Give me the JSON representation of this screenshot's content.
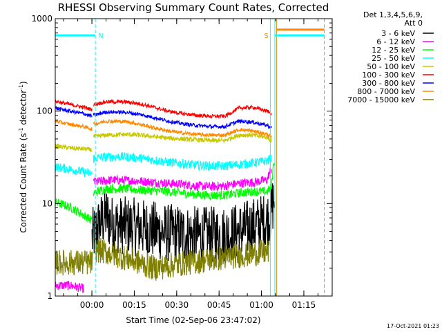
{
  "chart_data": {
    "type": "line",
    "title": "RHESSI Observing Summary Count Rates, Corrected",
    "xlabel": "Start Time (02-Sep-06 23:47:02)",
    "ylabel": "Corrected Count Rate (s⁻¹ detector⁻¹)",
    "ylabel_parts": [
      "Corrected Count Rate (s",
      "-1",
      " detector",
      "-1",
      ")"
    ],
    "yscale": "log",
    "ylim": [
      1,
      1000
    ],
    "x_unit": "minutes after 23:47:02",
    "xlim": [
      0,
      98
    ],
    "yticks": [
      {
        "v": 1,
        "label": "1"
      },
      {
        "v": 10,
        "label": "10"
      },
      {
        "v": 100,
        "label": "100"
      },
      {
        "v": 1000,
        "label": "1000"
      }
    ],
    "xticks": [
      {
        "t": 12.97,
        "label": "00:00"
      },
      {
        "t": 27.97,
        "label": "00:15"
      },
      {
        "t": 42.97,
        "label": "00:30"
      },
      {
        "t": 57.97,
        "label": "00:45"
      },
      {
        "t": 72.97,
        "label": "01:00"
      },
      {
        "t": 87.97,
        "label": "01:15"
      }
    ],
    "legend_header": [
      "Det 1,3,4,5,6,9,",
      "Att 0"
    ],
    "legend_position": "right",
    "footer": "17-Oct-2021 01:23",
    "series": [
      {
        "name": "3 - 6 keV",
        "color": "#000000",
        "segments": [
          {
            "x": [
              13,
              15,
              18,
              20,
              30,
              40,
              45,
              50,
              55,
              60,
              65,
              70,
              75,
              76.5,
              77.5
            ],
            "y": [
              4.2,
              5.5,
              7.5,
              6.0,
              5.5,
              4.8,
              4.7,
              4.5,
              4.5,
              4.6,
              5.0,
              5.6,
              6.5,
              8.0,
              12.0
            ]
          }
        ],
        "noise": 0.32
      },
      {
        "name": "6 - 12 keV",
        "color": "#ff00ff",
        "segments": [
          {
            "x": [
              0,
              5.5,
              10
            ],
            "y": [
              1.3,
              1.3,
              1.2
            ]
          },
          {
            "x": [
              13.5,
              20,
              30,
              40,
              45,
              50,
              55,
              60,
              65,
              70,
              75,
              76.5
            ],
            "y": [
              17,
              18,
              17.5,
              16.5,
              16.2,
              15.5,
              15.3,
              15.5,
              16.5,
              17,
              18,
              24
            ]
          }
        ],
        "noise": 0.05
      },
      {
        "name": "12 - 25 keV",
        "color": "#00ff00",
        "segments": [
          {
            "x": [
              0,
              5,
              10,
              13
            ],
            "y": [
              10.3,
              9.2,
              7.5,
              6.5
            ]
          },
          {
            "x": [
              13.5,
              18,
              25,
              30,
              40,
              45,
              50,
              55,
              60,
              65,
              70,
              75,
              76.5,
              77.5
            ],
            "y": [
              13,
              14.5,
              14.5,
              14,
              13.5,
              13,
              12.5,
              12.3,
              12.3,
              13,
              13.5,
              13.5,
              15,
              30
            ]
          }
        ],
        "noise": 0.05
      },
      {
        "name": "25 - 50 keV",
        "color": "#00ffff",
        "segments": [
          {
            "x": [
              0,
              5,
              10,
              13
            ],
            "y": [
              25,
              23.5,
              22,
              21
            ]
          },
          {
            "x": [
              13.5,
              18,
              25,
              30,
              35,
              40,
              45,
              50,
              55,
              60,
              62,
              65,
              70,
              75,
              76.5
            ],
            "y": [
              31,
              32,
              32,
              31,
              29.5,
              28,
              27,
              26,
              25.5,
              25.5,
              26,
              26.5,
              27.5,
              29,
              31
            ]
          }
        ],
        "noise": 0.05
      },
      {
        "name": "50 - 100 keV",
        "color": "#c8c800",
        "segments": [
          {
            "x": [
              0,
              5,
              10,
              13
            ],
            "y": [
              42,
              40,
              39,
              38
            ]
          },
          {
            "x": [
              13.5,
              18,
              25,
              30,
              35,
              40,
              45,
              50,
              55,
              60,
              62,
              65,
              70,
              75,
              76.5
            ],
            "y": [
              53,
              55,
              56,
              55,
              53,
              51,
              50,
              49,
              48,
              48,
              51,
              55,
              55,
              52,
              48
            ]
          }
        ],
        "noise": 0.025
      },
      {
        "name": "100 - 300 keV",
        "color": "#ff0000",
        "segments": [
          {
            "x": [
              0,
              5,
              10,
              13
            ],
            "y": [
              128,
              118,
              110,
              104
            ]
          },
          {
            "x": [
              13.5,
              18,
              25,
              30,
              35,
              40,
              45,
              50,
              55,
              60,
              62,
              65,
              70,
              75,
              76.5
            ],
            "y": [
              118,
              126,
              126,
              120,
              110,
              100,
              94,
              90,
              88,
              88,
              95,
              108,
              110,
              100,
              95
            ]
          }
        ],
        "noise": 0.02
      },
      {
        "name": "300 - 800 keV",
        "color": "#0000ff",
        "segments": [
          {
            "x": [
              0,
              5,
              10,
              13
            ],
            "y": [
              108,
              100,
              94,
              88
            ]
          },
          {
            "x": [
              13.5,
              18,
              25,
              30,
              35,
              40,
              45,
              50,
              55,
              60,
              62,
              65,
              70,
              75,
              76.5
            ],
            "y": [
              90,
              98,
              97,
              92,
              85,
              78,
              73,
              70,
              68,
              68,
              72,
              78,
              76,
              70,
              66
            ]
          }
        ],
        "noise": 0.02
      },
      {
        "name": "800 - 7000 keV",
        "color": "#ff8800",
        "segments": [
          {
            "x": [
              0,
              5,
              10,
              13
            ],
            "y": [
              78,
              72,
              68,
              64
            ]
          },
          {
            "x": [
              13.5,
              18,
              25,
              30,
              35,
              40,
              45,
              50,
              55,
              60,
              62,
              65,
              70,
              75,
              76.5
            ],
            "y": [
              72,
              78,
              77,
              72,
              66,
              61,
              58,
              56,
              55,
              55,
              58,
              63,
              61,
              56,
              52
            ]
          }
        ],
        "noise": 0.02
      },
      {
        "name": "7000 - 15000 keV",
        "color": "#808000",
        "segments": [
          {
            "x": [
              0,
              6,
              13.2
            ],
            "y": [
              2.3,
              2.3,
              2.3
            ]
          },
          {
            "x": [
              14,
              35,
              75.5
            ],
            "y": [
              3.2,
              2.0,
              3.0
            ]
          }
        ],
        "noise": 0.14
      }
    ],
    "annotations": [
      {
        "text": "N",
        "color": "#00ffff",
        "t": 14.2
      },
      {
        "text": "S",
        "color": "#ff8800",
        "t": 75.6
      }
    ],
    "attenuator_lines": [
      {
        "t": 0,
        "color": "#00ffff"
      },
      {
        "t": 14.2,
        "color": "#00ffff",
        "dashed": true
      },
      {
        "t": 76.1,
        "color": "#00ffff"
      },
      {
        "t": 77.7,
        "color": "#00ffff"
      },
      {
        "t": 78.3,
        "color": "#ff8800"
      },
      {
        "t": 95.2,
        "color": "#ff8800",
        "dashed": true
      }
    ],
    "flag_bars": [
      {
        "t1": 0,
        "t2": 14.2,
        "v": 660,
        "color": "#00ffff"
      },
      {
        "t1": 77.7,
        "t2": 95.2,
        "v": 660,
        "color": "#00ffff"
      },
      {
        "t1": 78.3,
        "t2": 95.2,
        "v": 760,
        "color": "#ff8800"
      }
    ]
  }
}
